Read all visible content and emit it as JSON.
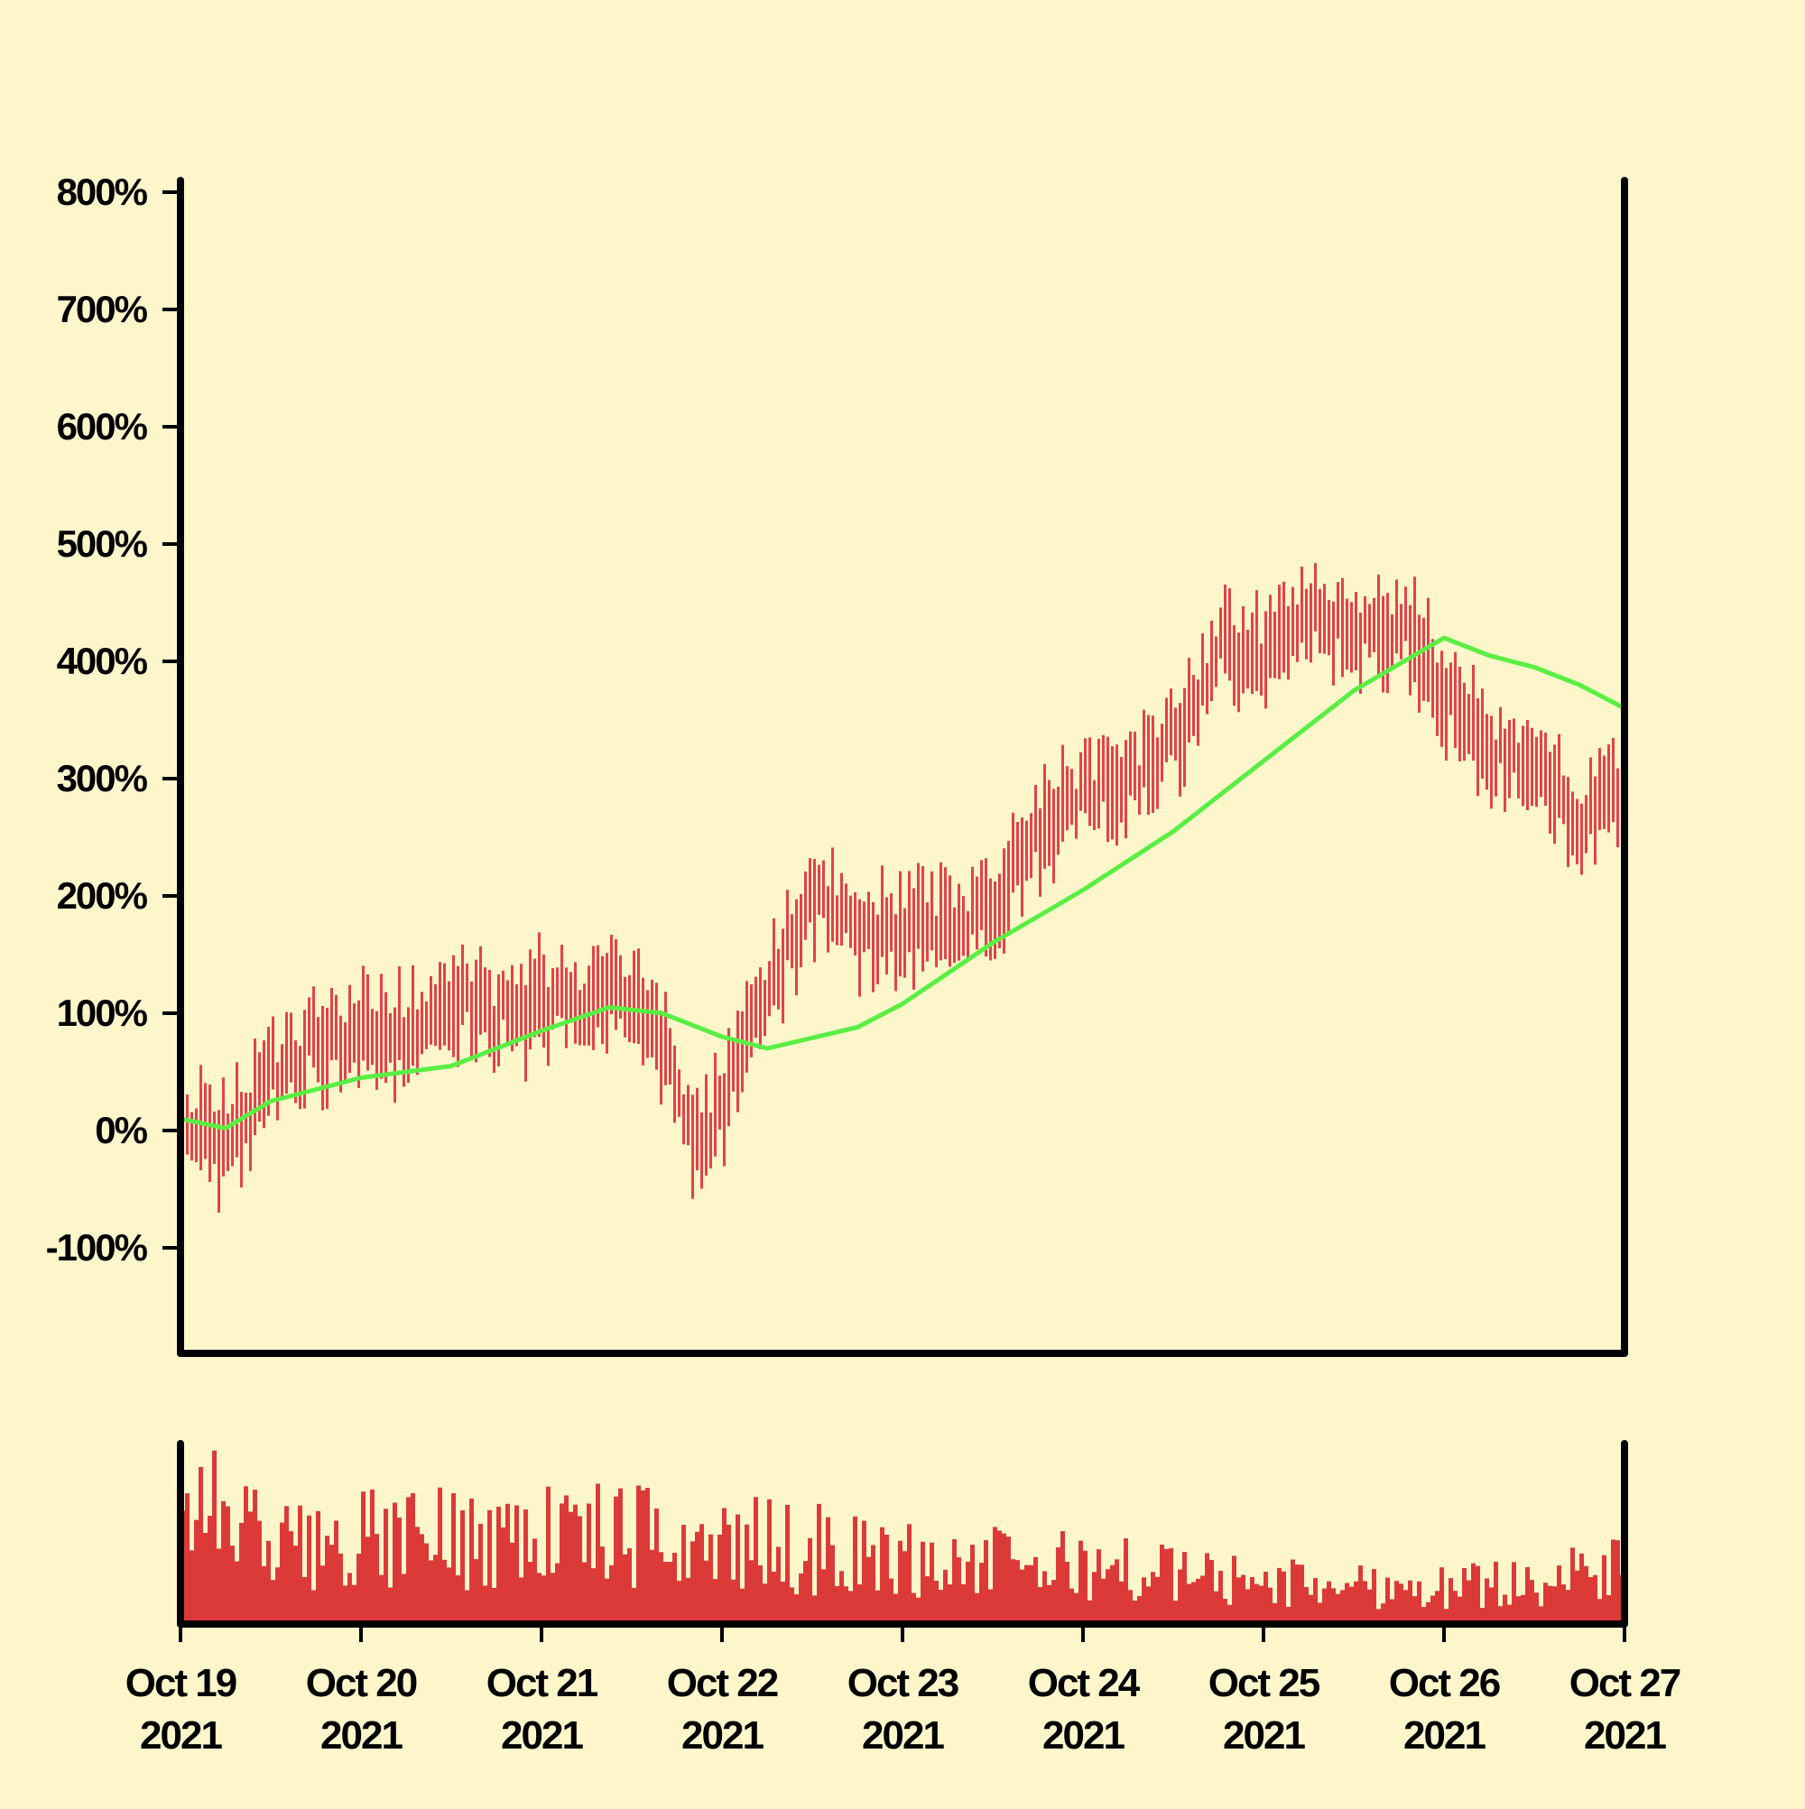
{
  "chart_data": {
    "type": "ohlc",
    "title": "",
    "xlabel": "",
    "ylabel": "",
    "colors": {
      "background": "#fef6cb",
      "price_bars": "#e0434b",
      "moving_average": "#5aee45",
      "volume_bars": "#dc3a38",
      "axes": "#000000"
    },
    "grid": false,
    "legend": "none",
    "price_axis": {
      "ylim": [
        -190,
        810
      ],
      "ticks": [
        {
          "value": -100,
          "label": "-100%"
        },
        {
          "value": 0,
          "label": "0%"
        },
        {
          "value": 100,
          "label": "100%"
        },
        {
          "value": 200,
          "label": "200%"
        },
        {
          "value": 300,
          "label": "300%"
        },
        {
          "value": 400,
          "label": "400%"
        },
        {
          "value": 500,
          "label": "500%"
        },
        {
          "value": 600,
          "label": "600%"
        },
        {
          "value": 700,
          "label": "700%"
        },
        {
          "value": 800,
          "label": "800%"
        }
      ]
    },
    "x_axis": {
      "start": "2021-10-19T00:00",
      "end": "2021-10-27T00:00",
      "ticks": [
        {
          "date": "2021-10-19",
          "label": [
            "Oct 19",
            "2021"
          ]
        },
        {
          "date": "2021-10-20",
          "label": [
            "Oct 20",
            "2021"
          ]
        },
        {
          "date": "2021-10-21",
          "label": [
            "Oct 21",
            "2021"
          ]
        },
        {
          "date": "2021-10-22",
          "label": [
            "Oct 22",
            "2021"
          ]
        },
        {
          "date": "2021-10-23",
          "label": [
            "Oct 23",
            "2021"
          ]
        },
        {
          "date": "2021-10-24",
          "label": [
            "Oct 24",
            "2021"
          ]
        },
        {
          "date": "2021-10-25",
          "label": [
            "Oct 25",
            "2021"
          ]
        },
        {
          "date": "2021-10-26",
          "label": [
            "Oct 26",
            "2021"
          ]
        },
        {
          "date": "2021-10-27",
          "label": [
            "Oct 27",
            "2021"
          ]
        }
      ]
    },
    "close_series_anchors": [
      {
        "t": "2021-10-19T00:00",
        "v": 5
      },
      {
        "t": "2021-10-19T06:00",
        "v": -15
      },
      {
        "t": "2021-10-19T12:00",
        "v": 45
      },
      {
        "t": "2021-10-19T18:00",
        "v": 75
      },
      {
        "t": "2021-10-20T00:00",
        "v": 85
      },
      {
        "t": "2021-10-20T06:00",
        "v": 80
      },
      {
        "t": "2021-10-20T12:00",
        "v": 110
      },
      {
        "t": "2021-10-20T18:00",
        "v": 95
      },
      {
        "t": "2021-10-21T00:00",
        "v": 105
      },
      {
        "t": "2021-10-21T06:00",
        "v": 115
      },
      {
        "t": "2021-10-21T12:00",
        "v": 120
      },
      {
        "t": "2021-10-21T16:00",
        "v": 70
      },
      {
        "t": "2021-10-21T20:00",
        "v": -10
      },
      {
        "t": "2021-10-22T00:00",
        "v": 15
      },
      {
        "t": "2021-10-22T06:00",
        "v": 120
      },
      {
        "t": "2021-10-22T12:00",
        "v": 200
      },
      {
        "t": "2021-10-22T18:00",
        "v": 165
      },
      {
        "t": "2021-10-23T00:00",
        "v": 170
      },
      {
        "t": "2021-10-23T06:00",
        "v": 180
      },
      {
        "t": "2021-10-23T12:00",
        "v": 190
      },
      {
        "t": "2021-10-23T18:00",
        "v": 250
      },
      {
        "t": "2021-10-24T00:00",
        "v": 290
      },
      {
        "t": "2021-10-24T06:00",
        "v": 300
      },
      {
        "t": "2021-10-24T12:00",
        "v": 330
      },
      {
        "t": "2021-10-24T18:00",
        "v": 410
      },
      {
        "t": "2021-10-25T00:00",
        "v": 400
      },
      {
        "t": "2021-10-25T06:00",
        "v": 440
      },
      {
        "t": "2021-10-25T12:00",
        "v": 415
      },
      {
        "t": "2021-10-25T18:00",
        "v": 430
      },
      {
        "t": "2021-10-26T00:00",
        "v": 375
      },
      {
        "t": "2021-10-26T06:00",
        "v": 320
      },
      {
        "t": "2021-10-26T12:00",
        "v": 310
      },
      {
        "t": "2021-10-26T18:00",
        "v": 265
      },
      {
        "t": "2021-10-27T00:00",
        "v": 285
      }
    ],
    "moving_average": [
      {
        "t": "2021-10-19T00:00",
        "v": 10
      },
      {
        "t": "2021-10-19T06:00",
        "v": 2
      },
      {
        "t": "2021-10-19T12:00",
        "v": 25
      },
      {
        "t": "2021-10-20T00:00",
        "v": 45
      },
      {
        "t": "2021-10-20T12:00",
        "v": 55
      },
      {
        "t": "2021-10-21T00:00",
        "v": 85
      },
      {
        "t": "2021-10-21T09:00",
        "v": 105
      },
      {
        "t": "2021-10-21T16:00",
        "v": 100
      },
      {
        "t": "2021-10-22T00:00",
        "v": 80
      },
      {
        "t": "2021-10-22T06:00",
        "v": 70
      },
      {
        "t": "2021-10-22T18:00",
        "v": 88
      },
      {
        "t": "2021-10-23T00:00",
        "v": 108
      },
      {
        "t": "2021-10-23T12:00",
        "v": 160
      },
      {
        "t": "2021-10-24T00:00",
        "v": 205
      },
      {
        "t": "2021-10-24T12:00",
        "v": 255
      },
      {
        "t": "2021-10-25T00:00",
        "v": 315
      },
      {
        "t": "2021-10-25T12:00",
        "v": 375
      },
      {
        "t": "2021-10-26T00:00",
        "v": 420
      },
      {
        "t": "2021-10-26T06:00",
        "v": 405
      },
      {
        "t": "2021-10-26T12:00",
        "v": 395
      },
      {
        "t": "2021-10-26T18:00",
        "v": 380
      },
      {
        "t": "2021-10-27T00:00",
        "v": 360
      }
    ],
    "volume": {
      "bar_count": 320,
      "ylim": [
        0,
        1
      ],
      "levels": [
        {
          "t": "2021-10-19T00:00",
          "v": 0.8
        },
        {
          "t": "2021-10-19T12:00",
          "v": 0.45
        },
        {
          "t": "2021-10-20T00:00",
          "v": 0.5
        },
        {
          "t": "2021-10-21T00:00",
          "v": 0.55
        },
        {
          "t": "2021-10-21T18:00",
          "v": 0.5
        },
        {
          "t": "2021-10-22T12:00",
          "v": 0.45
        },
        {
          "t": "2021-10-23T00:00",
          "v": 0.38
        },
        {
          "t": "2021-10-24T00:00",
          "v": 0.35
        },
        {
          "t": "2021-10-25T00:00",
          "v": 0.25
        },
        {
          "t": "2021-10-26T00:00",
          "v": 0.22
        },
        {
          "t": "2021-10-27T00:00",
          "v": 0.32
        }
      ]
    }
  }
}
